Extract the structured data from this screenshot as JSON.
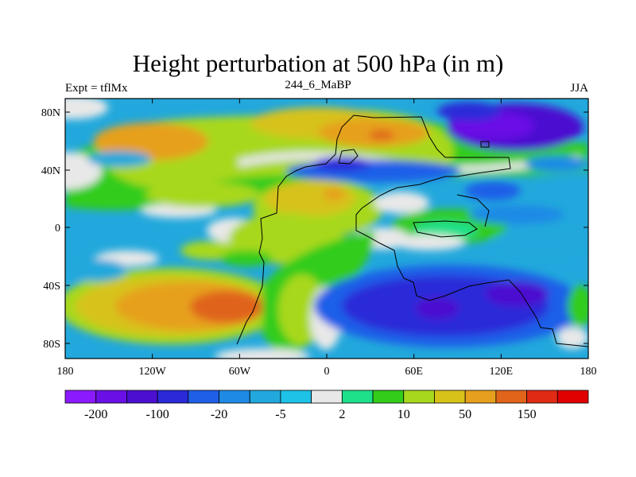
{
  "title": "Height perturbation at 500 hPa (in m)",
  "left_label": "Expt = tflMx",
  "center_label": "244_6_MaBP",
  "right_label": "JJA",
  "map": {
    "lat_ticks": [
      "80N",
      "40N",
      "0",
      "40S",
      "80S"
    ],
    "lon_ticks": [
      "180",
      "120W",
      "60W",
      "0",
      "60E",
      "120E",
      "180"
    ],
    "lat_range": [
      -90,
      90
    ],
    "lon_range": [
      -180,
      180
    ],
    "note": "Paleogeography (244 Ma, Pangaea) coastline overlay; shaded field = 500 hPa height perturbation"
  },
  "colorbar": {
    "colors": [
      "#8c1aff",
      "#6a10e6",
      "#4b0fd0",
      "#2a2ad8",
      "#1f5fe8",
      "#1f8ae6",
      "#22a8dc",
      "#1ec2e6",
      "#e8e8e8",
      "#1ee08a",
      "#33cc1a",
      "#a8d81e",
      "#d7c21a",
      "#e6a01e",
      "#e0641a",
      "#e02a14",
      "#e00000"
    ],
    "labels": [
      "-200",
      "-100",
      "-20",
      "-5",
      "2",
      "10",
      "50",
      "150"
    ]
  }
}
